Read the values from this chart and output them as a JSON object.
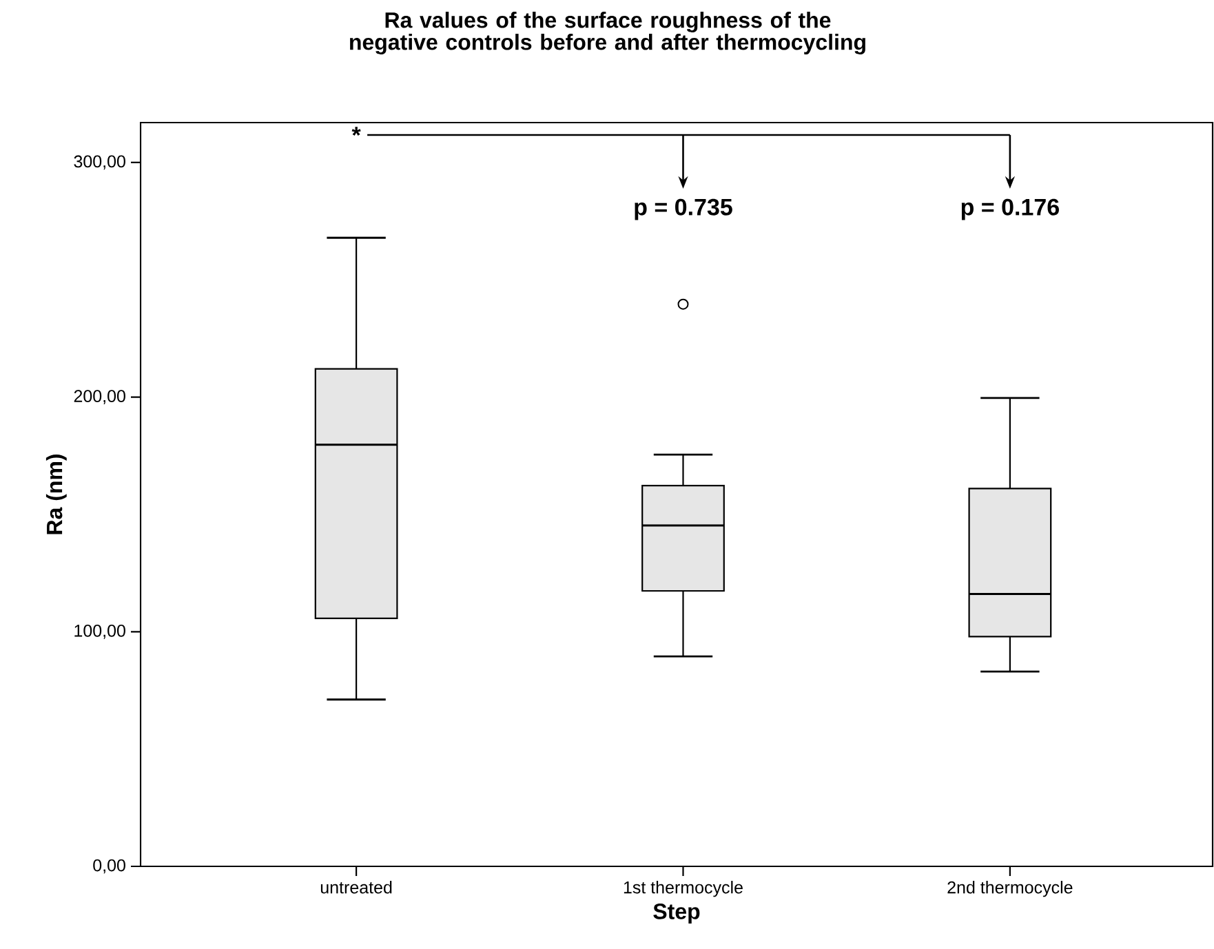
{
  "chart_data": {
    "type": "box",
    "title": "Ra values of the surface roughness of the negative controls before and after thermocycling",
    "xlabel": "Step",
    "ylabel": "Ra (nm)",
    "categories": [
      "untreated",
      "1st thermocycle",
      "2nd thermocycle"
    ],
    "color": "#e6e6e6",
    "boxes": [
      {
        "low": 71.1,
        "q1": 105.7,
        "median": 179.7,
        "q3": 212,
        "high": 267.9
      },
      {
        "low": 89.5,
        "q1": 117.4,
        "median": 145.3,
        "q3": 162.3,
        "high": 175.5,
        "outliers": [
          239.6
        ]
      },
      {
        "low": 83,
        "q1": 97.9,
        "median": 116.1,
        "q3": 161,
        "high": 199.6
      }
    ],
    "ylim": [
      0,
      317
    ],
    "yticks": [
      {
        "value": 0,
        "label": "0,00"
      },
      {
        "value": 100,
        "label": "100,00"
      },
      {
        "value": 200,
        "label": "200,00"
      },
      {
        "value": 300,
        "label": "300,00"
      }
    ],
    "annotations": [
      "*",
      "p = 0.735",
      "p = 0.176"
    ]
  }
}
